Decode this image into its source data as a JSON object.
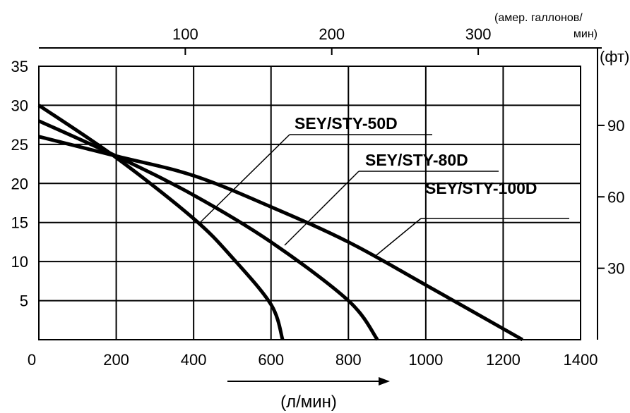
{
  "chart_data": {
    "type": "line",
    "x": {
      "label": "(л/мин)",
      "range": [
        0,
        1400
      ],
      "ticks": [
        0,
        200,
        400,
        600,
        800,
        1000,
        1200,
        1400
      ]
    },
    "x_top": {
      "label_line1": "(амер. галлонов/",
      "label_line2": "мин)",
      "ticks": [
        100,
        200,
        300
      ]
    },
    "y_left": {
      "range": [
        0,
        35
      ],
      "ticks": [
        5,
        10,
        15,
        20,
        25,
        30,
        35
      ]
    },
    "y_right": {
      "label": "(фт)",
      "ticks": [
        30,
        60,
        90
      ]
    },
    "grid": true,
    "series": [
      {
        "name": "SEY/STY-50D",
        "points": [
          [
            0,
            30
          ],
          [
            200,
            23.3
          ],
          [
            400,
            15.5
          ],
          [
            500,
            10.5
          ],
          [
            600,
            4.5
          ],
          [
            630,
            0
          ]
        ]
      },
      {
        "name": "SEY/STY-80D",
        "points": [
          [
            0,
            28
          ],
          [
            200,
            23.5
          ],
          [
            400,
            18.5
          ],
          [
            600,
            12.5
          ],
          [
            800,
            5
          ],
          [
            875,
            0
          ]
        ]
      },
      {
        "name": "SEY/STY-100D",
        "points": [
          [
            0,
            26
          ],
          [
            200,
            23.5
          ],
          [
            400,
            21
          ],
          [
            600,
            17
          ],
          [
            800,
            12.5
          ],
          [
            1000,
            7
          ],
          [
            1250,
            0
          ]
        ]
      }
    ]
  }
}
